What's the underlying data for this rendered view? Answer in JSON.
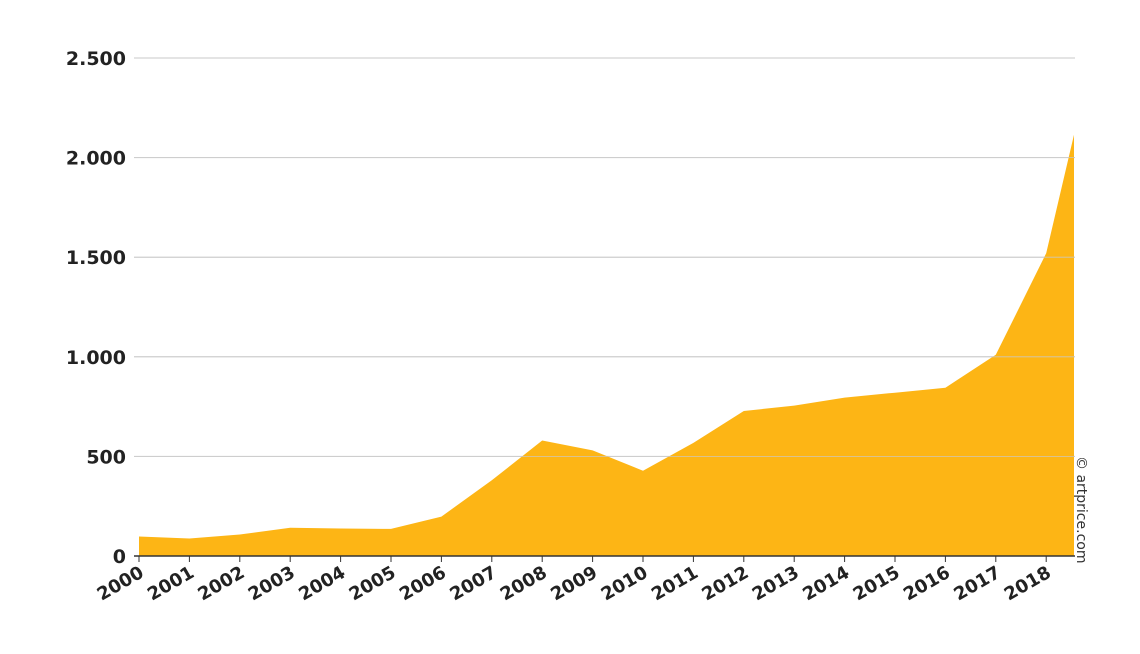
{
  "chart_data": {
    "type": "area",
    "x": [
      "2000",
      "2001",
      "2002",
      "2003",
      "2004",
      "2005",
      "2006",
      "2007",
      "2008",
      "2009",
      "2010",
      "2011",
      "2012",
      "2013",
      "2014",
      "2015",
      "2016",
      "2017",
      "2018"
    ],
    "series": [
      {
        "values": [
          98,
          88,
          108,
          142,
          138,
          136,
          198,
          380,
          580,
          530,
          428,
          568,
          728,
          755,
          795,
          820,
          845,
          1010,
          1520
        ],
        "end_value": 2115,
        "color": "#FDB515"
      }
    ],
    "y_ticks": [
      {
        "value": 0,
        "label": "0"
      },
      {
        "value": 500,
        "label": "500"
      },
      {
        "value": 1000,
        "label": "1.000"
      },
      {
        "value": 1500,
        "label": "1.500"
      },
      {
        "value": 2000,
        "label": "2.000"
      },
      {
        "value": 2500,
        "label": "2.500"
      }
    ],
    "ylim": [
      0,
      2500
    ],
    "grid": true,
    "title": "",
    "xlabel": "",
    "ylabel": "",
    "watermark": "© artprice.com"
  }
}
